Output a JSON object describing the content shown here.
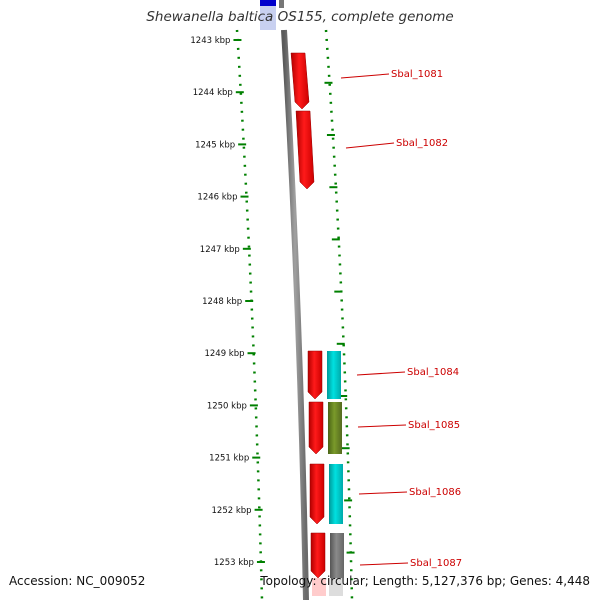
{
  "title": "Shewanella baltica OS155, complete genome",
  "footer": {
    "accession": "Accession: NC_009052",
    "stats": "Topology: circular; Length: 5,127,376 bp; Genes: 4,448"
  },
  "axis": {
    "tick_labels": [
      "1243 kbp",
      "1244 kbp",
      "1245 kbp",
      "1246 kbp",
      "1247 kbp",
      "1248 kbp",
      "1249 kbp",
      "1250 kbp",
      "1251 kbp",
      "1252 kbp",
      "1253 kbp"
    ]
  },
  "genes": [
    {
      "label": "Sbal_1081",
      "color": "#ff0000",
      "track": "forward-outer"
    },
    {
      "label": "Sbal_1082",
      "color": "#ff0000",
      "track": "forward-outer"
    },
    {
      "label": "Sbal_1084",
      "color": "#ff0000",
      "track": "forward-outer"
    },
    {
      "label": "Sbal_1085",
      "color": "#ff0000",
      "track": "forward-outer"
    },
    {
      "label": "Sbal_1086",
      "color": "#ff0000",
      "track": "forward-outer"
    },
    {
      "label": "Sbal_1087",
      "color": "#ff0000",
      "track": "forward-outer"
    }
  ],
  "category_blocks": [
    {
      "gene": "Sbal_1084",
      "color": "#00cccc"
    },
    {
      "gene": "Sbal_1085",
      "color": "#6b8e23"
    },
    {
      "gene": "Sbal_1086",
      "color": "#00cccc"
    },
    {
      "gene": "Sbal_1087",
      "color": "#808080"
    }
  ],
  "colors": {
    "label_text": "#cc0000",
    "tick": "#008000",
    "backbone": "#888888",
    "top_block": "#0000cc"
  }
}
